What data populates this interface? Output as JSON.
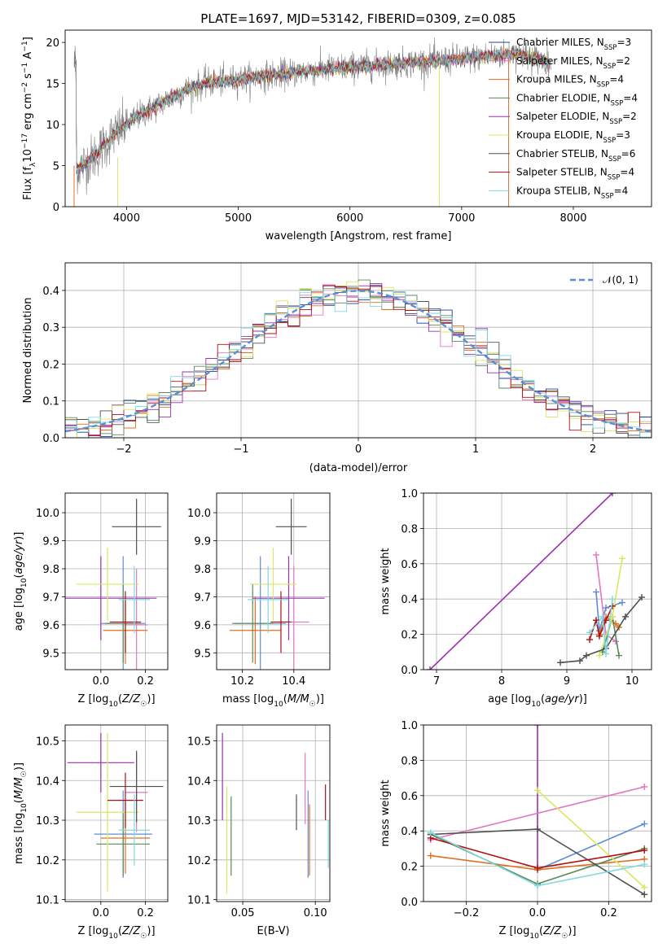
{
  "chart_data": [
    {
      "type": "line",
      "title": "PLATE=1697, MJD=53142, FIBERID=0309, z=0.085",
      "xlabel": "wavelength [Angstrom, rest frame]",
      "ylabel": "Flux [fλ10⁻¹⁷ erg cm⁻² s⁻¹ A⁻¹]",
      "xlim": [
        3450,
        8700
      ],
      "ylim": [
        0,
        21.5
      ],
      "xticks": [
        4000,
        5000,
        6000,
        7000,
        8000
      ],
      "yticks": [
        0,
        5,
        10,
        15,
        20
      ],
      "legend_position": "right",
      "series": [
        {
          "name": "Chabrier MILES, N",
          "sub": "SSP",
          "suffix": "=3",
          "color": "#1f3fa0"
        },
        {
          "name": "Salpeter MILES, N",
          "sub": "SSP",
          "suffix": "=2",
          "color": "#e377c2"
        },
        {
          "name": "Kroupa MILES, N",
          "sub": "SSP",
          "suffix": "=4",
          "color": "#e07020"
        },
        {
          "name": "Chabrier ELODIE, N",
          "sub": "SSP",
          "suffix": "=4",
          "color": "#5a8a5a"
        },
        {
          "name": "Salpeter ELODIE, N",
          "sub": "SSP",
          "suffix": "=2",
          "color": "#9b30b0"
        },
        {
          "name": "Kroupa ELODIE, N",
          "sub": "SSP",
          "suffix": "=3",
          "color": "#d8e860"
        },
        {
          "name": "Chabrier STELIB, N",
          "sub": "SSP",
          "suffix": "=6",
          "color": "#505050"
        },
        {
          "name": "Salpeter STELIB, N",
          "sub": "SSP",
          "suffix": "=4",
          "color": "#b01010"
        },
        {
          "name": "Kroupa STELIB, N",
          "sub": "SSP",
          "suffix": "=4",
          "color": "#80d8e0"
        }
      ],
      "continuum_points": [
        [
          3550,
          4.5
        ],
        [
          3700,
          6
        ],
        [
          3900,
          9
        ],
        [
          4000,
          10
        ],
        [
          4100,
          11
        ],
        [
          4300,
          12.5
        ],
        [
          4500,
          14
        ],
        [
          4700,
          15
        ],
        [
          5000,
          15.5
        ],
        [
          5300,
          16
        ],
        [
          5600,
          16.5
        ],
        [
          6000,
          17
        ],
        [
          6500,
          17.5
        ],
        [
          7000,
          18
        ],
        [
          7500,
          18.7
        ],
        [
          7800,
          17.5
        ]
      ]
    },
    {
      "type": "line",
      "xlabel": "(data-model)/error",
      "ylabel": "Normed distribution",
      "xlim": [
        -2.5,
        2.5
      ],
      "ylim": [
        0,
        0.475
      ],
      "xticks": [
        -2,
        -1,
        0,
        1,
        2
      ],
      "yticks": [
        0.0,
        0.1,
        0.2,
        0.3,
        0.4
      ],
      "xtick_labels": [
        "−2",
        "−1",
        "0",
        "1",
        "2"
      ],
      "ytick_labels": [
        "0.0",
        "0.1",
        "0.2",
        "0.3",
        "0.4"
      ],
      "legend_label": "𝒩(0, 1)",
      "legend_position": "top-right",
      "gaussian_color": "#5b8ed6",
      "hist_bin_width": 0.1
    },
    {
      "type": "scatter",
      "xlabel": "Z [log10(Z/Z☉)]",
      "ylabel": "age [log10(age/yr)]",
      "xlim": [
        -0.16,
        0.3
      ],
      "ylim": [
        9.44,
        10.07
      ],
      "xticks": [
        0.0,
        0.2
      ],
      "yticks": [
        9.5,
        9.6,
        9.7,
        9.8,
        9.9,
        10.0
      ],
      "errorbars": [
        {
          "x": 0.1,
          "y": 9.605,
          "xerr": 0.1,
          "yerr": 0.24,
          "color": "#5b8ed6"
        },
        {
          "x": 0.16,
          "y": 9.6,
          "xerr": 0.05,
          "yerr": 0.2,
          "color": "#e377c2"
        },
        {
          "x": 0.11,
          "y": 9.58,
          "xerr": 0.1,
          "yerr": 0.12,
          "color": "#e07020"
        },
        {
          "x": 0.1,
          "y": 9.605,
          "xerr": 0.08,
          "yerr": 0.14,
          "color": "#5a8a5a"
        },
        {
          "x": 0.0,
          "y": 9.695,
          "xerr": 0.25,
          "yerr": 0.15,
          "color": "#9b30b0"
        },
        {
          "x": 0.03,
          "y": 9.745,
          "xerr": 0.14,
          "yerr": 0.13,
          "color": "#d8e860"
        },
        {
          "x": 0.16,
          "y": 9.95,
          "xerr": 0.11,
          "yerr": 0.1,
          "color": "#505050"
        },
        {
          "x": 0.11,
          "y": 9.61,
          "xerr": 0.07,
          "yerr": 0.11,
          "color": "#b01010"
        },
        {
          "x": 0.15,
          "y": 9.69,
          "xerr": 0.07,
          "yerr": 0.12,
          "color": "#80d8e0"
        }
      ]
    },
    {
      "type": "scatter",
      "xlabel": "mass [log10(M/M☉)]",
      "xlim": [
        10.1,
        10.54
      ],
      "ylim": [
        9.44,
        10.07
      ],
      "xticks": [
        10.2,
        10.4
      ],
      "yticks": [
        9.5,
        9.6,
        9.7,
        9.8,
        9.9,
        10.0
      ],
      "errorbars": [
        {
          "x": 10.27,
          "y": 9.605,
          "xerr": 0.1,
          "yerr": 0.24,
          "color": "#5b8ed6"
        },
        {
          "x": 10.4,
          "y": 9.61,
          "xerr": 0.06,
          "yerr": 0.2,
          "color": "#e377c2"
        },
        {
          "x": 10.25,
          "y": 9.58,
          "xerr": 0.1,
          "yerr": 0.12,
          "color": "#e07020"
        },
        {
          "x": 10.24,
          "y": 9.605,
          "xerr": 0.08,
          "yerr": 0.14,
          "color": "#5a8a5a"
        },
        {
          "x": 10.38,
          "y": 9.695,
          "xerr": 0.14,
          "yerr": 0.15,
          "color": "#9b30b0"
        },
        {
          "x": 10.32,
          "y": 9.745,
          "xerr": 0.09,
          "yerr": 0.13,
          "color": "#d8e860"
        },
        {
          "x": 10.39,
          "y": 9.95,
          "xerr": 0.06,
          "yerr": 0.1,
          "color": "#505050"
        },
        {
          "x": 10.35,
          "y": 9.61,
          "xerr": 0.04,
          "yerr": 0.11,
          "color": "#b01010"
        },
        {
          "x": 10.3,
          "y": 9.69,
          "xerr": 0.08,
          "yerr": 0.12,
          "color": "#80d8e0"
        }
      ]
    },
    {
      "type": "line",
      "xlabel": "age  [log10(age/yr)]",
      "ylabel": "mass weight",
      "xlim": [
        6.8,
        10.3
      ],
      "ylim": [
        0,
        1
      ],
      "xticks": [
        7,
        8,
        9,
        10
      ],
      "yticks": [
        0.0,
        0.2,
        0.4,
        0.6,
        0.8,
        1.0
      ],
      "series": [
        {
          "color": "#9b30b0",
          "points": [
            [
              6.9,
              0.0
            ],
            [
              9.7,
              1.0
            ]
          ]
        },
        {
          "color": "#5b8ed6",
          "points": [
            [
              9.45,
              0.44
            ],
            [
              9.5,
              0.22
            ],
            [
              9.6,
              0.35
            ],
            [
              9.85,
              0.38
            ]
          ]
        },
        {
          "color": "#e377c2",
          "points": [
            [
              9.45,
              0.65
            ],
            [
              9.6,
              0.2
            ],
            [
              9.75,
              0.16
            ]
          ]
        },
        {
          "color": "#e07020",
          "points": [
            [
              9.5,
              0.2
            ],
            [
              9.6,
              0.3
            ],
            [
              9.75,
              0.26
            ],
            [
              9.8,
              0.24
            ]
          ]
        },
        {
          "color": "#5a8a5a",
          "points": [
            [
              9.55,
              0.1
            ],
            [
              9.7,
              0.3
            ],
            [
              9.8,
              0.08
            ]
          ]
        },
        {
          "color": "#d8e860",
          "points": [
            [
              9.5,
              0.08
            ],
            [
              9.7,
              0.3
            ],
            [
              9.85,
              0.63
            ]
          ]
        },
        {
          "color": "#505050",
          "points": [
            [
              8.9,
              0.04
            ],
            [
              9.2,
              0.05
            ],
            [
              9.3,
              0.08
            ],
            [
              9.6,
              0.12
            ],
            [
              9.9,
              0.3
            ],
            [
              10.15,
              0.41
            ]
          ]
        },
        {
          "color": "#b01010",
          "points": [
            [
              9.35,
              0.17
            ],
            [
              9.45,
              0.28
            ],
            [
              9.5,
              0.19
            ],
            [
              9.6,
              0.28
            ],
            [
              9.7,
              0.36
            ]
          ]
        },
        {
          "color": "#80d8e0",
          "points": [
            [
              9.35,
              0.21
            ],
            [
              9.55,
              0.3
            ],
            [
              9.6,
              0.09
            ],
            [
              9.7,
              0.4
            ]
          ]
        }
      ]
    },
    {
      "type": "scatter",
      "xlabel": "Z [log10(Z/Z☉)]",
      "ylabel": "mass [log10(M/M☉)]",
      "xlim": [
        -0.16,
        0.3
      ],
      "ylim": [
        10.095,
        10.54
      ],
      "xticks": [
        0.0,
        0.2
      ],
      "yticks": [
        10.1,
        10.2,
        10.3,
        10.4,
        10.5
      ],
      "errorbars": [
        {
          "x": 0.1,
          "y": 10.265,
          "xerr": 0.13,
          "yerr": 0.11,
          "color": "#5b8ed6"
        },
        {
          "x": 0.16,
          "y": 10.37,
          "xerr": 0.05,
          "yerr": 0.1,
          "color": "#e377c2"
        },
        {
          "x": 0.11,
          "y": 10.255,
          "xerr": 0.11,
          "yerr": 0.09,
          "color": "#e07020"
        },
        {
          "x": 0.1,
          "y": 10.24,
          "xerr": 0.12,
          "yerr": 0.08,
          "color": "#5a8a5a"
        },
        {
          "x": 0.0,
          "y": 10.445,
          "xerr": 0.15,
          "yerr": 0.075,
          "color": "#9b30b0"
        },
        {
          "x": 0.03,
          "y": 10.32,
          "xerr": 0.14,
          "yerr": 0.2,
          "color": "#d8e860"
        },
        {
          "x": 0.16,
          "y": 10.385,
          "xerr": 0.12,
          "yerr": 0.09,
          "color": "#505050"
        },
        {
          "x": 0.11,
          "y": 10.35,
          "xerr": 0.08,
          "yerr": 0.07,
          "color": "#b01010"
        },
        {
          "x": 0.15,
          "y": 10.275,
          "xerr": 0.07,
          "yerr": 0.09,
          "color": "#80d8e0"
        }
      ]
    },
    {
      "type": "scatter",
      "xlabel": "E(B-V)",
      "xlim": [
        0.032,
        0.11
      ],
      "ylim": [
        10.095,
        10.54
      ],
      "xticks": [
        0.05,
        0.1
      ],
      "xtick_labels": [
        "0.05",
        "0.10"
      ],
      "yticks": [
        10.1,
        10.2,
        10.3,
        10.4,
        10.5
      ],
      "errorbars": [
        {
          "x": 0.095,
          "y": 10.265,
          "yerr": 0.11,
          "color": "#5b8ed6"
        },
        {
          "x": 0.093,
          "y": 10.38,
          "yerr": 0.09,
          "color": "#e377c2"
        },
        {
          "x": 0.096,
          "y": 10.25,
          "yerr": 0.09,
          "color": "#e07020"
        },
        {
          "x": 0.042,
          "y": 10.26,
          "yerr": 0.1,
          "color": "#5a8a5a"
        },
        {
          "x": 0.036,
          "y": 10.41,
          "yerr": 0.11,
          "color": "#9b30b0"
        },
        {
          "x": 0.039,
          "y": 10.25,
          "yerr": 0.135,
          "color": "#d8e860"
        },
        {
          "x": 0.087,
          "y": 10.32,
          "yerr": 0.045,
          "color": "#505050"
        },
        {
          "x": 0.107,
          "y": 10.345,
          "yerr": 0.045,
          "color": "#b01010"
        },
        {
          "x": 0.109,
          "y": 10.24,
          "yerr": 0.06,
          "color": "#80d8e0"
        }
      ]
    },
    {
      "type": "line",
      "xlabel": "Z [log10(Z/Z☉)]",
      "ylabel": "mass weight",
      "xlim": [
        -0.32,
        0.32
      ],
      "ylim": [
        0,
        1
      ],
      "xticks": [
        -0.2,
        0.0,
        0.2
      ],
      "xtick_labels": [
        "−0.2",
        "0.0",
        "0.2"
      ],
      "yticks": [
        0.0,
        0.2,
        0.4,
        0.6,
        0.8,
        1.0
      ],
      "series": [
        {
          "color": "#9b30b0",
          "points": [
            [
              0,
              0.18
            ],
            [
              0,
              1.0
            ]
          ]
        },
        {
          "color": "#e377c2",
          "points": [
            [
              -0.3,
              0.35
            ],
            [
              0.3,
              0.65
            ]
          ]
        },
        {
          "color": "#5b8ed6",
          "points": [
            [
              0,
              0.18
            ],
            [
              0.3,
              0.44
            ]
          ]
        },
        {
          "color": "#e07020",
          "points": [
            [
              -0.3,
              0.26
            ],
            [
              0,
              0.18
            ],
            [
              0.3,
              0.24
            ]
          ]
        },
        {
          "color": "#5a8a5a",
          "points": [
            [
              -0.3,
              0.38
            ],
            [
              0,
              0.1
            ],
            [
              0.3,
              0.3
            ]
          ]
        },
        {
          "color": "#d8e860",
          "points": [
            [
              0,
              0.63
            ],
            [
              0.3,
              0.08
            ]
          ]
        },
        {
          "color": "#505050",
          "points": [
            [
              -0.3,
              0.38
            ],
            [
              0,
              0.41
            ],
            [
              0.3,
              0.04
            ]
          ]
        },
        {
          "color": "#b01010",
          "points": [
            [
              -0.3,
              0.36
            ],
            [
              0,
              0.19
            ],
            [
              0.3,
              0.29
            ]
          ]
        },
        {
          "color": "#80d8e0",
          "points": [
            [
              -0.3,
              0.39
            ],
            [
              0,
              0.09
            ],
            [
              0.3,
              0.21
            ]
          ]
        }
      ]
    }
  ]
}
